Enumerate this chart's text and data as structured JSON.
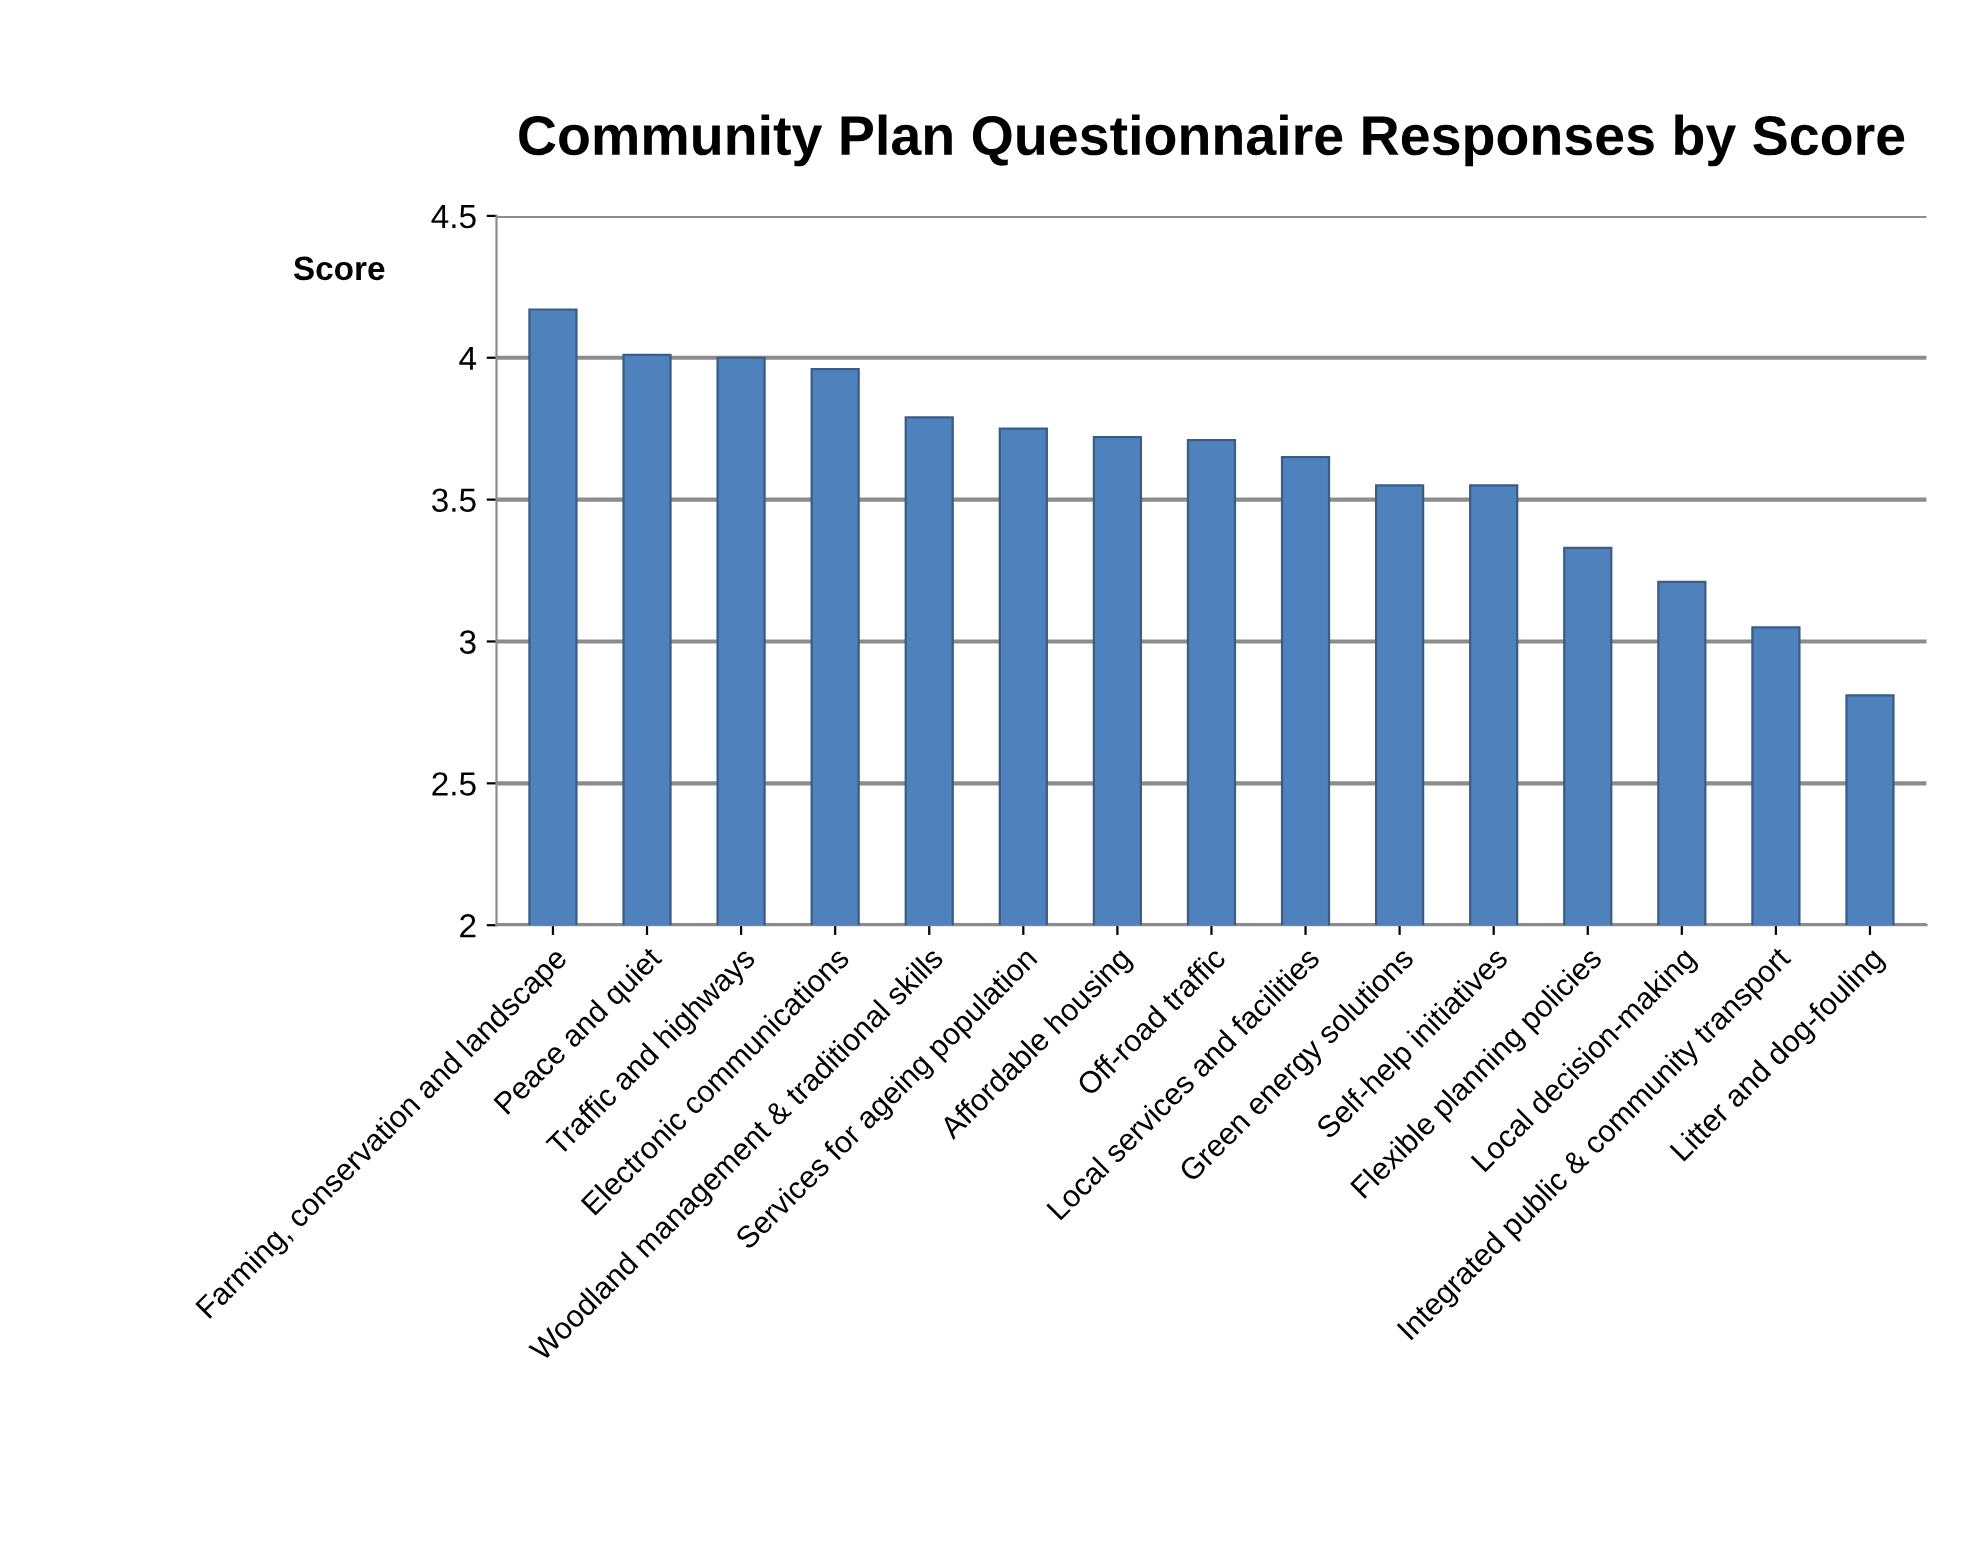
{
  "chart_data": {
    "type": "bar",
    "title": "Community Plan Questionnaire Responses by Score",
    "ylabel": "Score",
    "categories": [
      "Farming, conservation and landscape",
      "Peace and quiet",
      "Traffic and highways",
      "Electronic communications",
      "Woodland management & traditional skills",
      "Services for ageing population",
      "Affordable housing",
      "Off-road traffic",
      "Local services and facilities",
      "Green energy solutions",
      "Self-help initiatives",
      "Flexible planning policies",
      "Local decision-making",
      "Integrated public & community transport",
      "Litter and dog-fouling"
    ],
    "values": [
      4.17,
      4.01,
      4.0,
      3.96,
      3.79,
      3.75,
      3.72,
      3.71,
      3.65,
      3.55,
      3.55,
      3.33,
      3.21,
      3.05,
      2.81
    ],
    "color": "#4f81bd",
    "ylim": [
      2,
      4.5
    ],
    "yticks": [
      2,
      2.5,
      3,
      3.5,
      4,
      4.5
    ],
    "grid": "y",
    "legend": false
  }
}
